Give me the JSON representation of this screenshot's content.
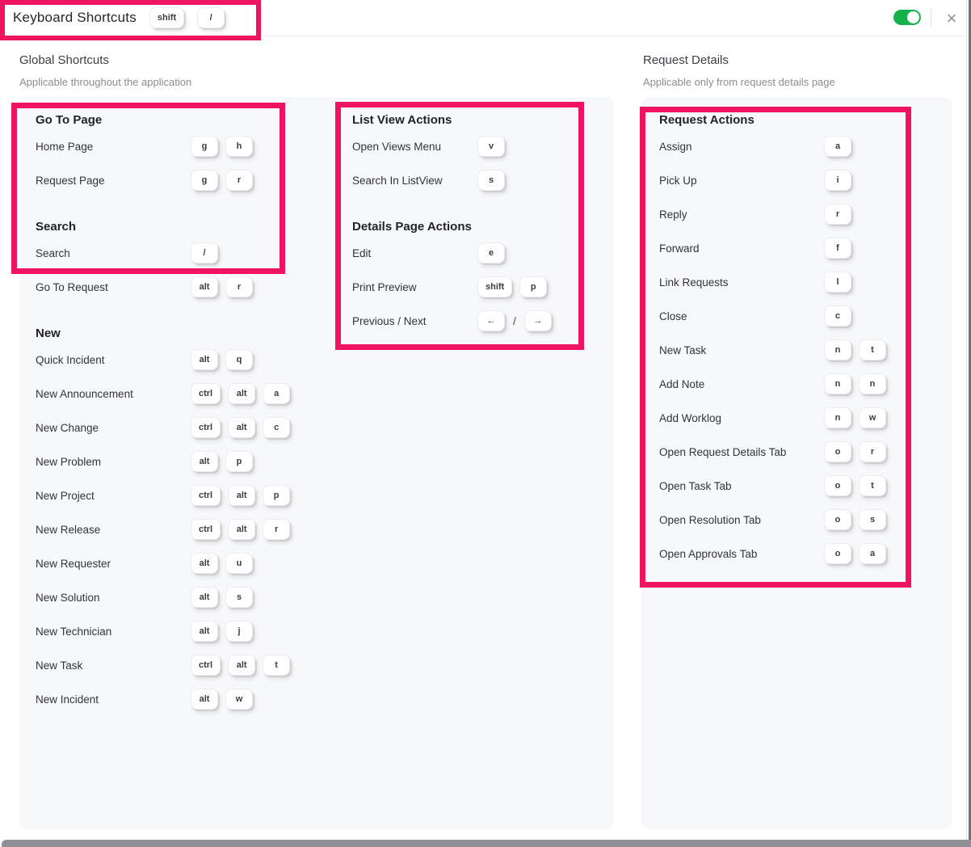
{
  "colors": {
    "annotation_pink": "#f0135f",
    "toggle_green": "#16b14c",
    "panel_gray": "#f7f8fa"
  },
  "header": {
    "title": "Keyboard Shortcuts",
    "keys": [
      "shift",
      "/"
    ],
    "toggle_state": "on",
    "close_glyph": "×"
  },
  "global_group": {
    "heading": "Global Shortcuts",
    "subheading": "Applicable throughout the application"
  },
  "request_group": {
    "heading": "Request Details",
    "subheading": "Applicable only from request details page"
  },
  "columns": [
    {
      "name": "global-left",
      "sections": [
        {
          "title": "Go To Page",
          "rows": [
            {
              "label": "Home Page",
              "keys": [
                "g",
                "h"
              ]
            },
            {
              "label": "Request Page",
              "keys": [
                "g",
                "r"
              ]
            }
          ]
        },
        {
          "title": "Search",
          "rows": [
            {
              "label": "Search",
              "keys": [
                "/"
              ]
            },
            {
              "label": "Go To Request",
              "keys": [
                "alt",
                "r"
              ]
            }
          ]
        },
        {
          "title": "New",
          "rows": [
            {
              "label": "Quick Incident",
              "keys": [
                "alt",
                "q"
              ]
            },
            {
              "label": "New Announcement",
              "keys": [
                "ctrl",
                "alt",
                "a"
              ]
            },
            {
              "label": "New Change",
              "keys": [
                "ctrl",
                "alt",
                "c"
              ]
            },
            {
              "label": "New Problem",
              "keys": [
                "alt",
                "p"
              ]
            },
            {
              "label": "New Project",
              "keys": [
                "ctrl",
                "alt",
                "p"
              ]
            },
            {
              "label": "New Release",
              "keys": [
                "ctrl",
                "alt",
                "r"
              ]
            },
            {
              "label": "New Requester",
              "keys": [
                "alt",
                "u"
              ]
            },
            {
              "label": "New Solution",
              "keys": [
                "alt",
                "s"
              ]
            },
            {
              "label": "New Technician",
              "keys": [
                "alt",
                "j"
              ]
            },
            {
              "label": "New Task",
              "keys": [
                "ctrl",
                "alt",
                "t"
              ]
            },
            {
              "label": "New Incident",
              "keys": [
                "alt",
                "w"
              ]
            }
          ]
        }
      ]
    },
    {
      "name": "global-middle",
      "sections": [
        {
          "title": "List View Actions",
          "rows": [
            {
              "label": "Open Views Menu",
              "keys": [
                "v"
              ]
            },
            {
              "label": "Search In ListView",
              "keys": [
                "s"
              ]
            }
          ]
        },
        {
          "title": "Details Page Actions",
          "rows": [
            {
              "label": "Edit",
              "keys": [
                "e"
              ]
            },
            {
              "label": "Print Preview",
              "keys": [
                "shift",
                "p"
              ]
            },
            {
              "label": "Previous / Next",
              "keys": [
                "←",
                {
                  "sep": "/"
                },
                "→"
              ]
            }
          ]
        }
      ]
    },
    {
      "name": "request-actions",
      "sections": [
        {
          "title": "Request Actions",
          "rows": [
            {
              "label": "Assign",
              "keys": [
                "a"
              ]
            },
            {
              "label": "Pick Up",
              "keys": [
                "i"
              ]
            },
            {
              "label": "Reply",
              "keys": [
                "r"
              ]
            },
            {
              "label": "Forward",
              "keys": [
                "f"
              ]
            },
            {
              "label": "Link Requests",
              "keys": [
                "l"
              ]
            },
            {
              "label": "Close",
              "keys": [
                "c"
              ]
            },
            {
              "label": "New Task",
              "keys": [
                "n",
                "t"
              ]
            },
            {
              "label": "Add Note",
              "keys": [
                "n",
                "n"
              ]
            },
            {
              "label": "Add Worklog",
              "keys": [
                "n",
                "w"
              ]
            },
            {
              "label": "Open Request Details Tab",
              "keys": [
                "o",
                "r"
              ]
            },
            {
              "label": "Open Task Tab",
              "keys": [
                "o",
                "t"
              ]
            },
            {
              "label": "Open Resolution Tab",
              "keys": [
                "o",
                "s"
              ]
            },
            {
              "label": "Open Approvals Tab",
              "keys": [
                "o",
                "a"
              ]
            }
          ]
        }
      ]
    }
  ]
}
